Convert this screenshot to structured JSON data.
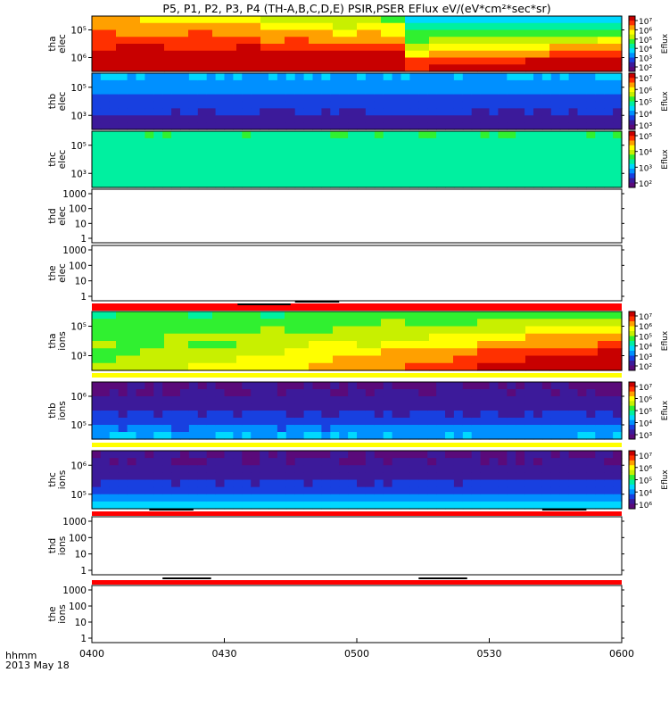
{
  "title": "P5, P1, P2, P3, P4 (TH-A,B,C,D,E) PSIR,PSER EFlux eV/(eV*cm²*sec*sr)",
  "time_axis": {
    "label_line1": "hhmm",
    "label_line2": "2013 May 18",
    "ticks": [
      "0400",
      "0430",
      "0500",
      "0530",
      "0600"
    ],
    "tick_minutes": [
      0,
      30,
      60,
      90,
      120
    ],
    "range_minutes": [
      0,
      120
    ]
  },
  "chart_data": [
    {
      "type": "heatmap",
      "id": "tha_elec",
      "ylabel": [
        "tha",
        "elec"
      ],
      "yticks": [
        "10⁵",
        "10⁶"
      ],
      "log_scale": true,
      "colorbar": {
        "label": "Eflux",
        "ticks": [
          "10⁷",
          "10⁶",
          "10⁵",
          "10⁴",
          "10³",
          "10²"
        ]
      },
      "bins": 22,
      "rows": 8
    },
    {
      "type": "heatmap",
      "id": "thb_elec",
      "ylabel": [
        "thb",
        "elec"
      ],
      "yticks": [
        "10⁵",
        "10³"
      ],
      "log_scale": true,
      "colorbar": {
        "label": "Eflux",
        "ticks": [
          "10⁷",
          "10⁶",
          "10⁵",
          "10⁴",
          "10³"
        ]
      },
      "bins": 60,
      "rows": 8
    },
    {
      "type": "heatmap",
      "id": "thc_elec",
      "ylabel": [
        "thc",
        "elec"
      ],
      "yticks": [
        "10⁵",
        "10³"
      ],
      "log_scale": true,
      "colorbar": {
        "label": "Eflux",
        "ticks": [
          "10⁵",
          "10⁴",
          "10³",
          "10²"
        ]
      },
      "bins": 60,
      "rows": 8
    },
    {
      "type": "line",
      "id": "thd_elec",
      "ylabel": [
        "thd",
        "elec"
      ],
      "yticks": [
        "1000",
        "100",
        "10",
        "1"
      ],
      "log_scale": true,
      "ylim": [
        1,
        1000
      ],
      "status_bar": {
        "color": "#ff0000",
        "segments": [
          [
            46,
            56
          ]
        ]
      }
    },
    {
      "type": "line",
      "id": "the_elec",
      "ylabel": [
        "the",
        "elec"
      ],
      "yticks": [
        "1000",
        "100",
        "10",
        "1"
      ],
      "log_scale": true,
      "ylim": [
        1,
        1000
      ],
      "status_bar": {
        "color": "#ff0000",
        "segments": [
          [
            33,
            45
          ]
        ]
      }
    },
    {
      "type": "heatmap",
      "id": "tha_ions",
      "ylabel": [
        "tha",
        "ions"
      ],
      "yticks": [
        "10⁵",
        "10³"
      ],
      "log_scale": true,
      "colorbar": {
        "label": "Eflux",
        "ticks": [
          "10⁷",
          "10⁶",
          "10⁵",
          "10⁴",
          "10³",
          "10²"
        ]
      },
      "bins": 22,
      "rows": 8,
      "status_bar": {
        "color": "#ffff00",
        "segments": []
      }
    },
    {
      "type": "heatmap",
      "id": "thb_ions",
      "ylabel": [
        "thb",
        "ions"
      ],
      "yticks": [
        "10⁶",
        "10⁵"
      ],
      "log_scale": true,
      "colorbar": {
        "label": "Eflux",
        "ticks": [
          "10⁷",
          "10⁶",
          "10⁵",
          "10⁴",
          "10³"
        ]
      },
      "bins": 60,
      "rows": 8,
      "status_bar": {
        "color": "#ffff00",
        "segments": []
      }
    },
    {
      "type": "heatmap",
      "id": "thc_ions",
      "ylabel": [
        "thc",
        "ions"
      ],
      "yticks": [
        "10⁶",
        "10⁵"
      ],
      "log_scale": true,
      "colorbar": {
        "label": "Eflux",
        "ticks": [
          "10⁷",
          "10⁶",
          "10⁵",
          "10⁴",
          "10⁶"
        ]
      },
      "bins": 60,
      "rows": 8,
      "status_bar": {
        "color": "#ff0000",
        "segments": [
          [
            13,
            23
          ],
          [
            102,
            112
          ]
        ]
      }
    },
    {
      "type": "line",
      "id": "thd_ions",
      "ylabel": [
        "thd",
        "ions"
      ],
      "yticks": [
        "1000",
        "100",
        "10",
        "1"
      ],
      "log_scale": true,
      "ylim": [
        1,
        1000
      ],
      "status_bar": {
        "color": "#ff0000",
        "segments": [
          [
            16,
            27
          ],
          [
            74,
            85
          ]
        ]
      }
    },
    {
      "type": "line",
      "id": "the_ions",
      "ylabel": [
        "the",
        "ions"
      ],
      "yticks": [
        "1000",
        "100",
        "10",
        "1"
      ],
      "log_scale": true,
      "ylim": [
        1,
        1000
      ]
    }
  ],
  "colors": {
    "status_red": "#ff0000",
    "status_yellow": "#ffff00",
    "colormap": [
      "#5a0a7a",
      "#3c1a9a",
      "#1840e0",
      "#0090ff",
      "#00d8ff",
      "#00f0a0",
      "#30f030",
      "#c8f000",
      "#ffff00",
      "#ffa000",
      "#ff3000",
      "#c80000"
    ]
  }
}
